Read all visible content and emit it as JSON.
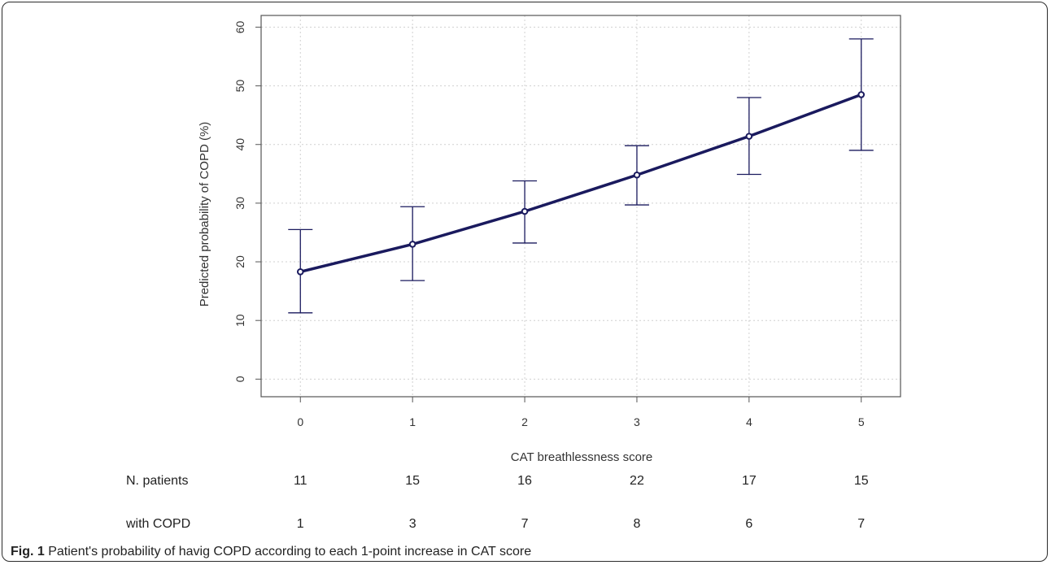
{
  "chart_data": {
    "type": "line",
    "title": "",
    "xlabel": "CAT breathlessness score",
    "ylabel": "Predicted probability of COPD (%)",
    "x": [
      0,
      1,
      2,
      3,
      4,
      5
    ],
    "x_ticks": [
      "0",
      "1",
      "2",
      "3",
      "4",
      "5"
    ],
    "xlim": [
      -0.35,
      5.35
    ],
    "ylim": [
      -3,
      62
    ],
    "y_ticks": [
      "0",
      "10",
      "20",
      "30",
      "40",
      "50",
      "60"
    ],
    "grid": true,
    "series": [
      {
        "values": [
          18.3,
          23.0,
          28.6,
          34.8,
          41.4,
          48.5
        ],
        "ci_lower": [
          11.3,
          16.8,
          23.2,
          29.7,
          34.9,
          39.0
        ],
        "ci_upper": [
          25.5,
          29.4,
          33.8,
          39.8,
          48.0,
          58.0
        ]
      }
    ],
    "table_rows": [
      {
        "label": "N. patients",
        "values": [
          "11",
          "15",
          "16",
          "22",
          "17",
          "15"
        ]
      },
      {
        "label": "with COPD",
        "values": [
          "1",
          "3",
          "7",
          "8",
          "6",
          "7"
        ]
      }
    ],
    "colors": {
      "line": "#1a1a5e",
      "axis": "#555555",
      "grid": "#d0d0d0"
    }
  },
  "caption": {
    "label": "Fig. 1",
    "text": "Patient's probability of havig COPD according to each 1-point increase in CAT score"
  }
}
